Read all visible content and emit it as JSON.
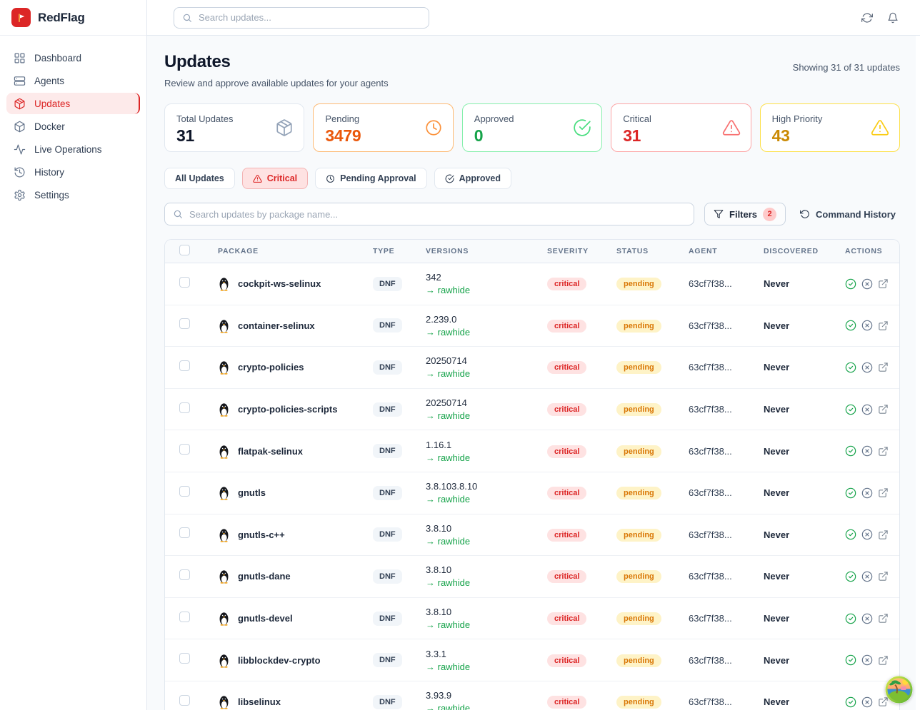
{
  "brand": {
    "name": "RedFlag"
  },
  "topbar": {
    "search_placeholder": "Search updates..."
  },
  "sidebar": {
    "items": [
      {
        "label": "Dashboard",
        "icon": "dashboard",
        "active": false
      },
      {
        "label": "Agents",
        "icon": "agents",
        "active": false
      },
      {
        "label": "Updates",
        "icon": "updates",
        "active": true
      },
      {
        "label": "Docker",
        "icon": "docker",
        "active": false
      },
      {
        "label": "Live Operations",
        "icon": "live-operations",
        "active": false
      },
      {
        "label": "History",
        "icon": "history",
        "active": false
      },
      {
        "label": "Settings",
        "icon": "settings",
        "active": false
      }
    ]
  },
  "page": {
    "title": "Updates",
    "subtitle": "Review and approve available updates for your agents",
    "showing": "Showing 31 of 31 updates"
  },
  "stats": {
    "cards": [
      {
        "label": "Total Updates",
        "value": "31",
        "icon": "package",
        "border": "#e2e8f0",
        "value_color": "#0f172a",
        "icon_color": "#94a3b8"
      },
      {
        "label": "Pending",
        "value": "3479",
        "icon": "clock",
        "border": "#fdba74",
        "value_color": "#ea580c",
        "icon_color": "#fb923c"
      },
      {
        "label": "Approved",
        "value": "0",
        "icon": "check-circle",
        "border": "#86efac",
        "value_color": "#16a34a",
        "icon_color": "#4ade80"
      },
      {
        "label": "Critical",
        "value": "31",
        "icon": "alert-triangle",
        "border": "#fca5a5",
        "value_color": "#dc2626",
        "icon_color": "#f87171"
      },
      {
        "label": "High Priority",
        "value": "43",
        "icon": "alert-triangle",
        "border": "#fde047",
        "value_color": "#ca8a04",
        "icon_color": "#facc15"
      }
    ]
  },
  "filter_tabs": [
    {
      "label": "All Updates",
      "icon": null,
      "active": false
    },
    {
      "label": "Critical",
      "icon": "alert-triangle",
      "active": true
    },
    {
      "label": "Pending Approval",
      "icon": "clock",
      "active": false
    },
    {
      "label": "Approved",
      "icon": "check-circle",
      "active": false
    }
  ],
  "toolbar": {
    "search_placeholder": "Search updates by package name...",
    "filters_label": "Filters",
    "filters_count": "2",
    "command_history_label": "Command History"
  },
  "table": {
    "columns": [
      "PACKAGE",
      "TYPE",
      "VERSIONS",
      "SEVERITY",
      "STATUS",
      "AGENT",
      "DISCOVERED",
      "ACTIONS"
    ],
    "rows": [
      {
        "package": "cockpit-ws-selinux",
        "type": "DNF",
        "version_from": "342",
        "version_to": "rawhide",
        "severity": "critical",
        "status": "pending",
        "agent": "63cf7f38...",
        "discovered": "Never"
      },
      {
        "package": "container-selinux",
        "type": "DNF",
        "version_from": "2.239.0",
        "version_to": "rawhide",
        "severity": "critical",
        "status": "pending",
        "agent": "63cf7f38...",
        "discovered": "Never"
      },
      {
        "package": "crypto-policies",
        "type": "DNF",
        "version_from": "20250714",
        "version_to": "rawhide",
        "severity": "critical",
        "status": "pending",
        "agent": "63cf7f38...",
        "discovered": "Never"
      },
      {
        "package": "crypto-policies-scripts",
        "type": "DNF",
        "version_from": "20250714",
        "version_to": "rawhide",
        "severity": "critical",
        "status": "pending",
        "agent": "63cf7f38...",
        "discovered": "Never"
      },
      {
        "package": "flatpak-selinux",
        "type": "DNF",
        "version_from": "1.16.1",
        "version_to": "rawhide",
        "severity": "critical",
        "status": "pending",
        "agent": "63cf7f38...",
        "discovered": "Never"
      },
      {
        "package": "gnutls",
        "type": "DNF",
        "version_from": "3.8.103.8.10",
        "version_to": "rawhide",
        "severity": "critical",
        "status": "pending",
        "agent": "63cf7f38...",
        "discovered": "Never"
      },
      {
        "package": "gnutls-c++",
        "type": "DNF",
        "version_from": "3.8.10",
        "version_to": "rawhide",
        "severity": "critical",
        "status": "pending",
        "agent": "63cf7f38...",
        "discovered": "Never"
      },
      {
        "package": "gnutls-dane",
        "type": "DNF",
        "version_from": "3.8.10",
        "version_to": "rawhide",
        "severity": "critical",
        "status": "pending",
        "agent": "63cf7f38...",
        "discovered": "Never"
      },
      {
        "package": "gnutls-devel",
        "type": "DNF",
        "version_from": "3.8.10",
        "version_to": "rawhide",
        "severity": "critical",
        "status": "pending",
        "agent": "63cf7f38...",
        "discovered": "Never"
      },
      {
        "package": "libblockdev-crypto",
        "type": "DNF",
        "version_from": "3.3.1",
        "version_to": "rawhide",
        "severity": "critical",
        "status": "pending",
        "agent": "63cf7f38...",
        "discovered": "Never"
      },
      {
        "package": "libselinux",
        "type": "DNF",
        "version_from": "3.93.9",
        "version_to": "rawhide",
        "severity": "critical",
        "status": "pending",
        "agent": "63cf7f38...",
        "discovered": "Never"
      }
    ]
  },
  "colors": {
    "brand_red": "#dc2626",
    "pending_orange": "#ea580c",
    "approved_green": "#16a34a",
    "critical_red": "#dc2626",
    "high_priority_amber": "#ca8a04",
    "severity_badge_bg": "#fee2e2",
    "status_badge_bg": "#fef3c7",
    "rawhide_green": "#16a34a"
  }
}
